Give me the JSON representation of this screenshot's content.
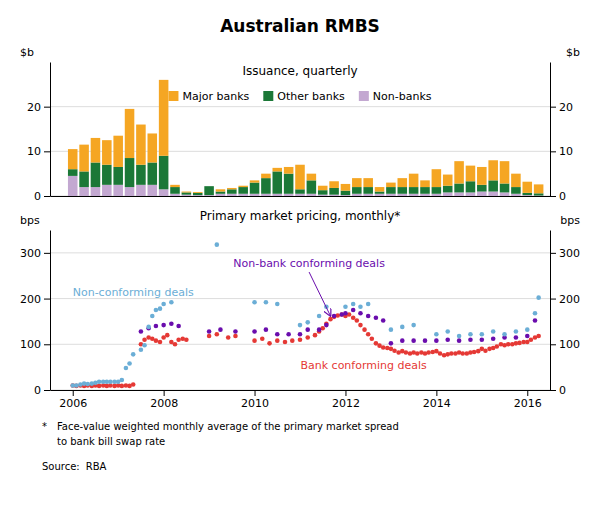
{
  "title": "Australian RMBS",
  "chart_data": [
    {
      "type": "bar",
      "stacked": true,
      "title": "Issuance, quarterly",
      "ylabel": "$b",
      "y2label": "$b",
      "x": [
        2006.0,
        2006.25,
        2006.5,
        2006.75,
        2007.0,
        2007.25,
        2007.5,
        2007.75,
        2008.0,
        2008.25,
        2008.5,
        2008.75,
        2009.0,
        2009.25,
        2009.5,
        2009.75,
        2010.0,
        2010.25,
        2010.5,
        2010.75,
        2011.0,
        2011.25,
        2011.5,
        2011.75,
        2012.0,
        2012.25,
        2012.5,
        2012.75,
        2013.0,
        2013.25,
        2013.5,
        2013.75,
        2014.0,
        2014.25,
        2014.5,
        2014.75,
        2015.0,
        2015.25,
        2015.5,
        2015.75,
        2016.0,
        2016.25
      ],
      "xlim": [
        2005.5,
        2016.5
      ],
      "ylim": [
        0,
        30
      ],
      "yticks": [
        0,
        10,
        20
      ],
      "y2lim": [
        0,
        30
      ],
      "y2ticks": [
        0,
        10,
        20
      ],
      "grid": true,
      "legend": "top",
      "tick_labels": "y",
      "series": [
        {
          "name": "Non-banks",
          "color": "#C3A8D1",
          "values": [
            4.5,
            2.0,
            2.0,
            2.5,
            2.5,
            2.0,
            2.5,
            2.5,
            1.5,
            0.5,
            0.3,
            0.2,
            0.2,
            0.5,
            0.5,
            0.5,
            0.5,
            0.5,
            0.5,
            0.5,
            0.5,
            0.5,
            0.3,
            0.3,
            0.2,
            0.5,
            0.5,
            0.5,
            0.5,
            0.5,
            0.5,
            0.5,
            0.5,
            0.8,
            0.8,
            0.8,
            1.0,
            1.0,
            0.8,
            0.5,
            0.2,
            0.1
          ]
        },
        {
          "name": "Other banks",
          "color": "#1B7837",
          "values": [
            1.5,
            3.5,
            5.5,
            4.5,
            4.0,
            6.5,
            4.5,
            5.0,
            7.5,
            1.5,
            0.5,
            0.5,
            2.0,
            0.5,
            1.0,
            1.5,
            2.5,
            3.5,
            5.0,
            4.5,
            1.0,
            3.0,
            1.0,
            1.5,
            1.0,
            1.5,
            1.5,
            0.5,
            1.5,
            1.5,
            1.5,
            1.5,
            1.5,
            1.5,
            2.0,
            2.5,
            1.5,
            2.5,
            2.0,
            1.5,
            0.5,
            0.5
          ]
        },
        {
          "name": "Major banks",
          "color": "#F5A623",
          "values": [
            4.5,
            6.0,
            5.5,
            5.5,
            7.0,
            11.0,
            9.0,
            6.5,
            17.0,
            0.5,
            0.2,
            0.2,
            0.0,
            0.5,
            0.3,
            0.3,
            0.5,
            1.0,
            0.8,
            1.5,
            5.5,
            1.5,
            1.0,
            1.5,
            1.5,
            2.0,
            2.0,
            1.0,
            1.0,
            2.0,
            3.0,
            1.5,
            4.0,
            2.5,
            5.0,
            3.5,
            4.0,
            4.5,
            5.0,
            3.0,
            2.5,
            2.0
          ]
        }
      ]
    },
    {
      "type": "scatter",
      "title": "Primary market pricing, monthly*",
      "ylabel": "bps",
      "y2label": "bps",
      "xlim": [
        2005.5,
        2016.5
      ],
      "xticks": [
        2006,
        2008,
        2010,
        2012,
        2014,
        2016
      ],
      "ylim": [
        0,
        350
      ],
      "yticks": [
        0,
        100,
        200,
        300
      ],
      "y2lim": [
        0,
        350
      ],
      "y2ticks": [
        0,
        100,
        200,
        300
      ],
      "grid": true,
      "series": [
        {
          "color": "#E53935",
          "x": [
            2006.0,
            2006.08,
            2006.17,
            2006.25,
            2006.33,
            2006.42,
            2006.5,
            2006.58,
            2006.67,
            2006.75,
            2006.83,
            2006.92,
            2007.0,
            2007.08,
            2007.17,
            2007.25,
            2007.33,
            2007.5,
            2007.58,
            2007.67,
            2007.75,
            2007.83,
            2007.92,
            2008.0,
            2008.08,
            2008.17,
            2008.25,
            2008.33,
            2008.42,
            2008.5,
            2009.0,
            2009.17,
            2009.42,
            2009.58,
            2010.0,
            2010.17,
            2010.33,
            2010.5,
            2010.67,
            2010.83,
            2011.0,
            2011.17,
            2011.33,
            2011.42,
            2011.5,
            2011.58,
            2011.67,
            2011.75,
            2011.83,
            2011.92,
            2012.0,
            2012.08,
            2012.17,
            2012.25,
            2012.33,
            2012.42,
            2012.5,
            2012.58,
            2012.67,
            2012.75,
            2012.83,
            2012.92,
            2013.0,
            2013.08,
            2013.17,
            2013.25,
            2013.33,
            2013.42,
            2013.5,
            2013.58,
            2013.67,
            2013.75,
            2013.83,
            2013.92,
            2014.0,
            2014.08,
            2014.17,
            2014.25,
            2014.33,
            2014.42,
            2014.5,
            2014.58,
            2014.67,
            2014.75,
            2014.83,
            2014.92,
            2015.0,
            2015.08,
            2015.17,
            2015.25,
            2015.33,
            2015.42,
            2015.5,
            2015.58,
            2015.67,
            2015.75,
            2015.83,
            2015.92,
            2016.0,
            2016.08,
            2016.17,
            2016.25
          ],
          "values": [
            10,
            9,
            10,
            9,
            10,
            9,
            10,
            9,
            10,
            9,
            10,
            9,
            10,
            9,
            10,
            9,
            12,
            100,
            110,
            115,
            112,
            108,
            105,
            115,
            120,
            105,
            100,
            110,
            112,
            110,
            118,
            122,
            115,
            118,
            108,
            112,
            102,
            108,
            105,
            108,
            110,
            115,
            120,
            128,
            135,
            145,
            155,
            160,
            163,
            165,
            162,
            165,
            158,
            152,
            142,
            132,
            122,
            112,
            102,
            97,
            93,
            92,
            90,
            86,
            82,
            85,
            82,
            80,
            82,
            80,
            82,
            80,
            82,
            83,
            85,
            80,
            76,
            78,
            80,
            80,
            82,
            80,
            80,
            82,
            83,
            85,
            90,
            86,
            90,
            92,
            95,
            100,
            98,
            100,
            100,
            102,
            103,
            105,
            105,
            110,
            115,
            118
          ]
        },
        {
          "color": "#6A0DAD",
          "x": [
            2007.5,
            2007.67,
            2007.83,
            2008.0,
            2008.17,
            2008.33,
            2009.0,
            2009.25,
            2009.58,
            2010.0,
            2010.25,
            2010.5,
            2010.75,
            2011.0,
            2011.17,
            2011.42,
            2011.58,
            2011.75,
            2011.92,
            2012.0,
            2012.17,
            2012.33,
            2012.5,
            2012.67,
            2012.83,
            2013.0,
            2013.25,
            2013.5,
            2013.75,
            2014.0,
            2014.25,
            2014.5,
            2014.75,
            2015.0,
            2015.25,
            2015.5,
            2015.75,
            2016.0,
            2016.17
          ],
          "values": [
            128,
            135,
            140,
            142,
            145,
            140,
            128,
            132,
            128,
            128,
            132,
            122,
            122,
            122,
            132,
            132,
            142,
            162,
            165,
            168,
            175,
            168,
            162,
            158,
            152,
            102,
            108,
            108,
            108,
            108,
            110,
            108,
            110,
            110,
            112,
            115,
            115,
            118,
            152
          ]
        },
        {
          "color": "#6BAED6",
          "x": [
            2006.0,
            2006.08,
            2006.17,
            2006.25,
            2006.33,
            2006.42,
            2006.5,
            2006.58,
            2006.67,
            2006.75,
            2006.83,
            2006.92,
            2007.0,
            2007.08,
            2007.17,
            2007.25,
            2007.33,
            2007.5,
            2007.58,
            2007.67,
            2007.75,
            2007.83,
            2007.92,
            2008.0,
            2008.17,
            2009.17,
            2010.0,
            2010.25,
            2010.5,
            2011.0,
            2011.17,
            2011.42,
            2011.58,
            2012.0,
            2012.17,
            2012.33,
            2012.5,
            2013.0,
            2013.25,
            2013.5,
            2014.0,
            2014.25,
            2014.5,
            2014.75,
            2015.0,
            2015.25,
            2015.5,
            2015.75,
            2016.0,
            2016.17,
            2016.25
          ],
          "values": [
            10,
            10,
            12,
            14,
            13,
            14,
            16,
            18,
            18,
            18,
            18,
            18,
            18,
            22,
            48,
            58,
            78,
            88,
            98,
            138,
            162,
            175,
            178,
            188,
            192,
            318,
            192,
            192,
            188,
            142,
            148,
            162,
            182,
            182,
            188,
            182,
            188,
            132,
            138,
            142,
            122,
            128,
            118,
            122,
            122,
            128,
            122,
            128,
            132,
            168,
            202
          ]
        }
      ],
      "annotations": [
        {
          "text": "Non-bank conforming deals",
          "x": 2011.2,
          "y": 258,
          "arrow_x": 2011.67,
          "arrow_y": 162,
          "color": "#6A0DAD"
        },
        {
          "text": "Non-conforming deals",
          "x": 2006.0,
          "y": 215,
          "color": "#6BAED6"
        },
        {
          "text": "Bank conforming deals",
          "x": 2012.4,
          "y": 55,
          "color": "#E53935"
        }
      ]
    }
  ],
  "footnote": {
    "marker": "*",
    "lines": [
      "Face-value weighted monthly average of the primary market spread",
      "to bank bill swap rate"
    ]
  },
  "source": {
    "label": "Source:",
    "value": "RBA"
  }
}
